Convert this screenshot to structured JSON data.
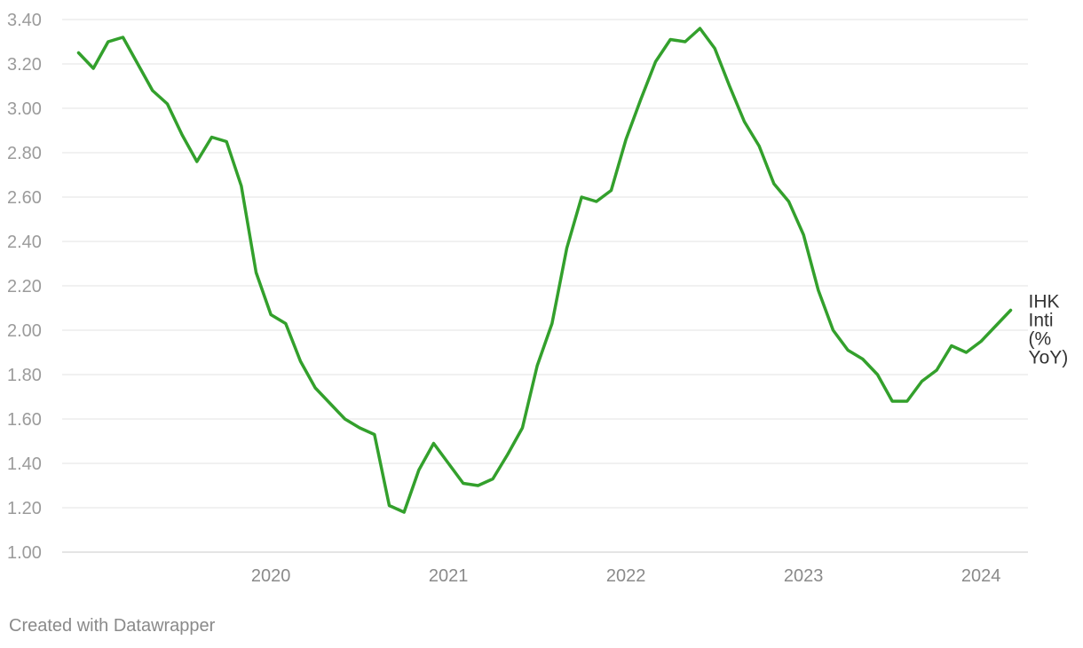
{
  "chart_data": {
    "type": "line",
    "title": "",
    "xlabel": "",
    "ylabel": "",
    "ylim": [
      1.0,
      3.4
    ],
    "y_ticks": [
      "1.00",
      "1.20",
      "1.40",
      "1.60",
      "1.80",
      "2.00",
      "2.20",
      "2.40",
      "2.60",
      "2.80",
      "3.00",
      "3.20",
      "3.40"
    ],
    "x_ticks": [
      "2020",
      "2021",
      "2022",
      "2023",
      "2024"
    ],
    "x_range": [
      "2019-06",
      "2024-09"
    ],
    "grid": true,
    "legend": "inline label at line end",
    "colors": {
      "series": "#33a02c",
      "grid": "#e3e3e3",
      "tick_text": "#9b9b9b"
    },
    "series": [
      {
        "name": "IHK Inti (% YoY)",
        "label_lines": [
          "IHK",
          "Inti",
          "(%",
          "YoY)"
        ],
        "x": [
          "2019-06",
          "2019-07",
          "2019-08",
          "2019-09",
          "2019-10",
          "2019-11",
          "2019-12",
          "2020-01",
          "2020-02",
          "2020-03",
          "2020-04",
          "2020-05",
          "2020-06",
          "2020-07",
          "2020-08",
          "2020-09",
          "2020-10",
          "2020-11",
          "2020-12",
          "2021-01",
          "2021-02",
          "2021-03",
          "2021-04",
          "2021-05",
          "2021-06",
          "2021-07",
          "2021-08",
          "2021-09",
          "2021-10",
          "2021-11",
          "2021-12",
          "2022-01",
          "2022-02",
          "2022-03",
          "2022-04",
          "2022-05",
          "2022-06",
          "2022-07",
          "2022-08",
          "2022-09",
          "2022-10",
          "2022-11",
          "2022-12",
          "2023-01",
          "2023-02",
          "2023-03",
          "2023-04",
          "2023-05",
          "2023-06",
          "2023-07",
          "2023-08",
          "2023-09",
          "2023-10",
          "2023-11",
          "2023-12",
          "2024-01",
          "2024-02",
          "2024-03",
          "2024-04",
          "2024-05",
          "2024-06",
          "2024-07",
          "2024-08",
          "2024-09"
        ],
        "values": [
          3.25,
          3.18,
          3.3,
          3.32,
          3.2,
          3.08,
          3.02,
          2.88,
          2.76,
          2.87,
          2.85,
          2.65,
          2.26,
          2.07,
          2.03,
          1.86,
          1.74,
          1.67,
          1.6,
          1.56,
          1.53,
          1.21,
          1.18,
          1.37,
          1.49,
          1.4,
          1.31,
          1.3,
          1.33,
          1.44,
          1.56,
          1.84,
          2.03,
          2.37,
          2.6,
          2.58,
          2.63,
          2.86,
          3.04,
          3.21,
          3.31,
          3.3,
          3.36,
          3.27,
          3.1,
          2.94,
          2.83,
          2.66,
          2.58,
          2.43,
          2.18,
          2.0,
          1.91,
          1.87,
          1.8,
          1.68,
          1.68,
          1.77,
          1.82,
          1.93,
          1.9,
          1.95,
          2.02,
          2.09
        ]
      }
    ]
  },
  "footer": {
    "credit": "Created with Datawrapper"
  }
}
